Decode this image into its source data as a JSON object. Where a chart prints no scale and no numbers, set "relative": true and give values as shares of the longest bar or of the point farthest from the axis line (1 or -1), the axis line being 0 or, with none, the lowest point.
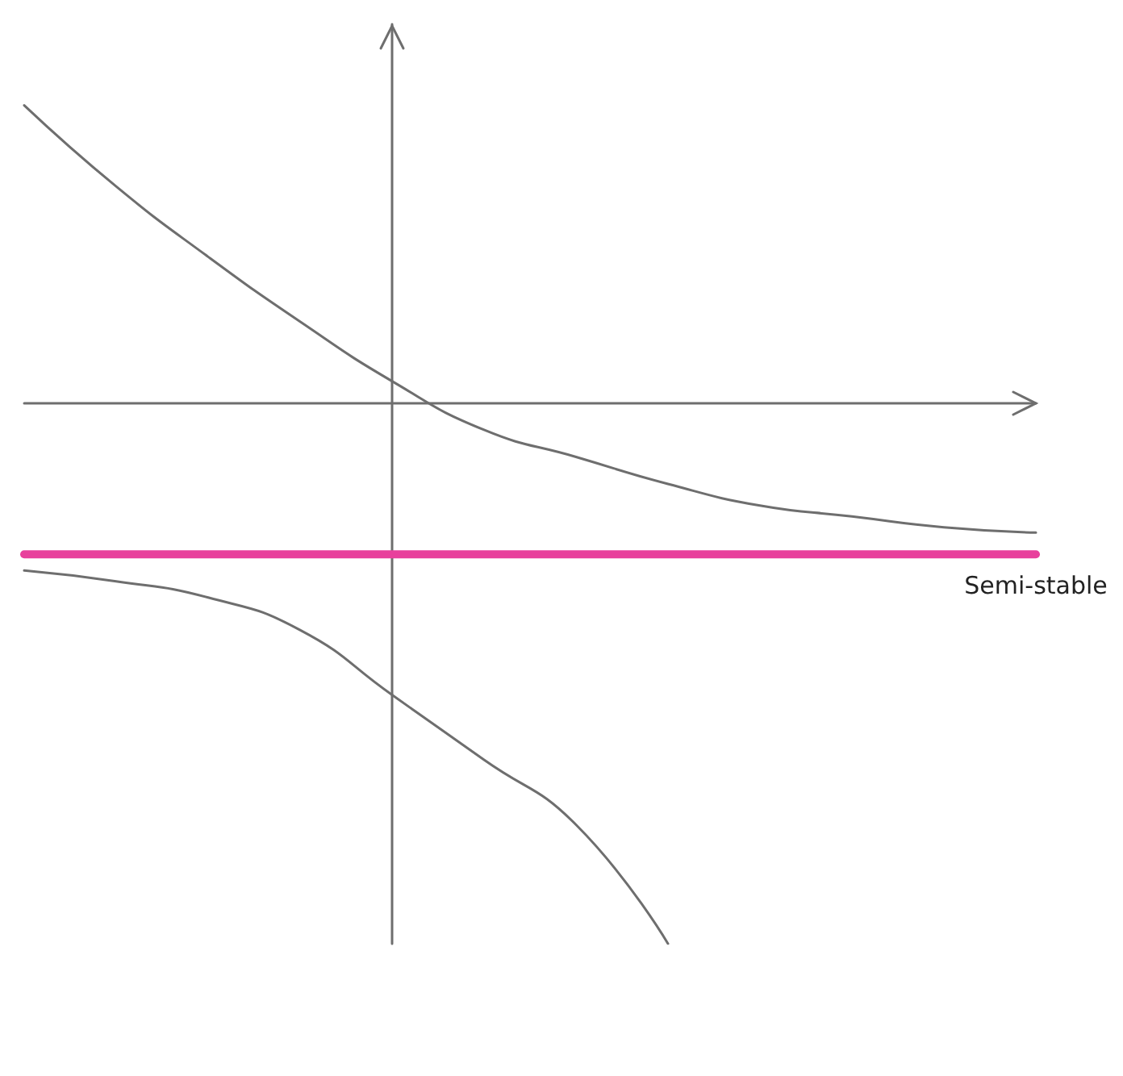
{
  "chart_data": {
    "type": "line",
    "relative": true,
    "marker": "none",
    "line_style": "solid",
    "categories": [
      null,
      null,
      null,
      null,
      null,
      null,
      null,
      null,
      null,
      null,
      null,
      null
    ],
    "series": [
      {
        "color": "#6e6e6e",
        "values": [
          0.55,
          0.4,
          0.27,
          0.15,
          0.04,
          -0.05,
          -0.1,
          -0.15,
          -0.19,
          -0.21,
          -0.23,
          -0.24
        ]
      },
      {
        "name": "Semi-stable",
        "color": "#e8409c",
        "values": [
          -0.28,
          -0.28,
          -0.28,
          -0.28,
          -0.28,
          -0.28,
          -0.28,
          -0.28,
          -0.28,
          -0.28,
          -0.28,
          -0.28
        ]
      },
      {
        "color": "#6e6e6e",
        "values": [
          -0.31,
          -0.33,
          -0.36,
          -0.42,
          -0.54,
          -0.66,
          -0.78,
          -1,
          null,
          null,
          null,
          null
        ]
      }
    ]
  }
}
